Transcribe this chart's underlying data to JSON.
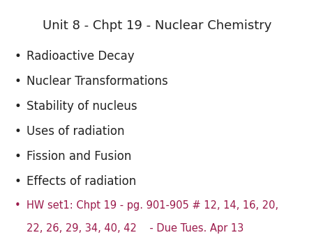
{
  "title": "Unit 8 - Chpt 19 - Nuclear Chemistry",
  "title_fontsize": 13,
  "title_color": "#222222",
  "bullet_items": [
    "Radioactive Decay",
    "Nuclear Transformations",
    "Stability of nucleus",
    "Uses of radiation",
    "Fission and Fusion",
    "Effects of radiation"
  ],
  "bullet_color": "#222222",
  "bullet_fontsize": 12,
  "hw_line1": "HW set1: Chpt 19 - pg. 901-905 # 12, 14, 16, 20,",
  "hw_line2": "22, 26, 29, 34, 40, 42    - Due Tues. Apr 13",
  "hw_color": "#9b1a4b",
  "hw_fontsize": 10.5,
  "background_color": "#ffffff",
  "bullet_char": "•",
  "font_family": "DejaVu Sans"
}
